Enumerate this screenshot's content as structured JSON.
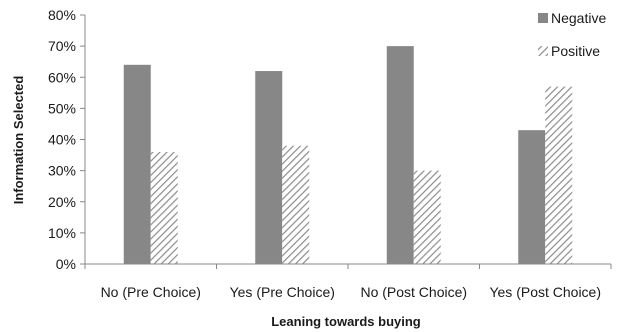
{
  "chart_data": {
    "type": "bar",
    "categories": [
      "No (Pre Choice)",
      "Yes (Pre Choice)",
      "No (Post Choice)",
      "Yes (Post Choice)"
    ],
    "series": [
      {
        "name": "Negative",
        "values": [
          64,
          62,
          70,
          43
        ],
        "color": "#878787",
        "pattern": "solid"
      },
      {
        "name": "Positive",
        "values": [
          36,
          38,
          30,
          57
        ],
        "color": "#8c8c8c",
        "pattern": "diagonal-hatch"
      }
    ],
    "title": "",
    "xlabel": "Leaning towards buying",
    "ylabel": "Information Selected",
    "ylim": [
      0,
      80
    ],
    "yticks": [
      "0%",
      "10%",
      "20%",
      "30%",
      "40%",
      "50%",
      "60%",
      "70%",
      "80%"
    ],
    "grid": false,
    "legend_position": "top-right"
  }
}
